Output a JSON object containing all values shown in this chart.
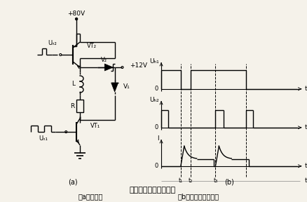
{
  "bg_color": "#f5f2ea",
  "title": "高低压切换型驱动线路",
  "subtitle_a": "（a）原理图",
  "subtitle_b": "（b）电压、电流波形",
  "label_a": "(a)",
  "label_b": "(b)",
  "v80": "+80V",
  "v12": "+12V",
  "vt2": "VT₂",
  "vt1": "VT₁",
  "v2": "V₂",
  "v1": "V₁",
  "ub2_circ": "Uₕ₂",
  "ub1_circ": "Uₕ₁",
  "L_lbl": "L",
  "R_lbl": "R",
  "wb1": "Uₕ₁",
  "wb2": "Uₕ₂",
  "wI": "I",
  "wt": "t",
  "wt1": "t₁",
  "wt2": "t₂",
  "wt3": "t₃",
  "zero": "0"
}
